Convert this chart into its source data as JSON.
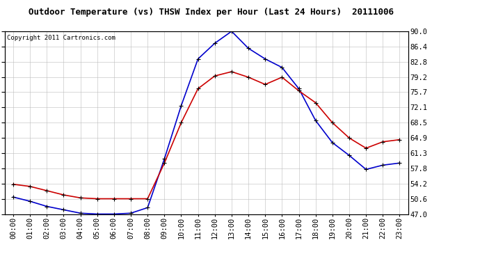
{
  "title": "Outdoor Temperature (vs) THSW Index per Hour (Last 24 Hours)  20111006",
  "copyright": "Copyright 2011 Cartronics.com",
  "hours": [
    "00:00",
    "01:00",
    "02:00",
    "03:00",
    "04:00",
    "05:00",
    "06:00",
    "07:00",
    "08:00",
    "09:00",
    "10:00",
    "11:00",
    "12:00",
    "13:00",
    "14:00",
    "15:00",
    "16:00",
    "17:00",
    "18:00",
    "19:00",
    "20:00",
    "21:00",
    "22:00",
    "23:00"
  ],
  "temp_red": [
    54.0,
    53.5,
    52.5,
    51.5,
    50.8,
    50.6,
    50.6,
    50.6,
    50.6,
    59.0,
    68.5,
    76.5,
    79.5,
    80.5,
    79.2,
    77.5,
    79.2,
    76.0,
    73.2,
    68.5,
    64.9,
    62.5,
    64.0,
    64.5
  ],
  "thsw_blue": [
    51.0,
    50.0,
    48.8,
    48.0,
    47.2,
    47.0,
    47.0,
    47.2,
    48.5,
    60.0,
    72.5,
    83.5,
    87.2,
    90.0,
    86.0,
    83.5,
    81.5,
    76.5,
    69.0,
    63.8,
    60.8,
    57.5,
    58.5,
    59.0
  ],
  "ymin": 47.0,
  "ymax": 90.0,
  "yticks": [
    47.0,
    50.6,
    54.2,
    57.8,
    61.3,
    64.9,
    68.5,
    72.1,
    75.7,
    79.2,
    82.8,
    86.4,
    90.0
  ],
  "line_color_red": "#cc0000",
  "line_color_blue": "#0000cc",
  "bg_color": "#ffffff",
  "grid_color": "#bbbbbb",
  "title_fontsize": 9,
  "copyright_fontsize": 6.5,
  "tick_fontsize": 7.5
}
